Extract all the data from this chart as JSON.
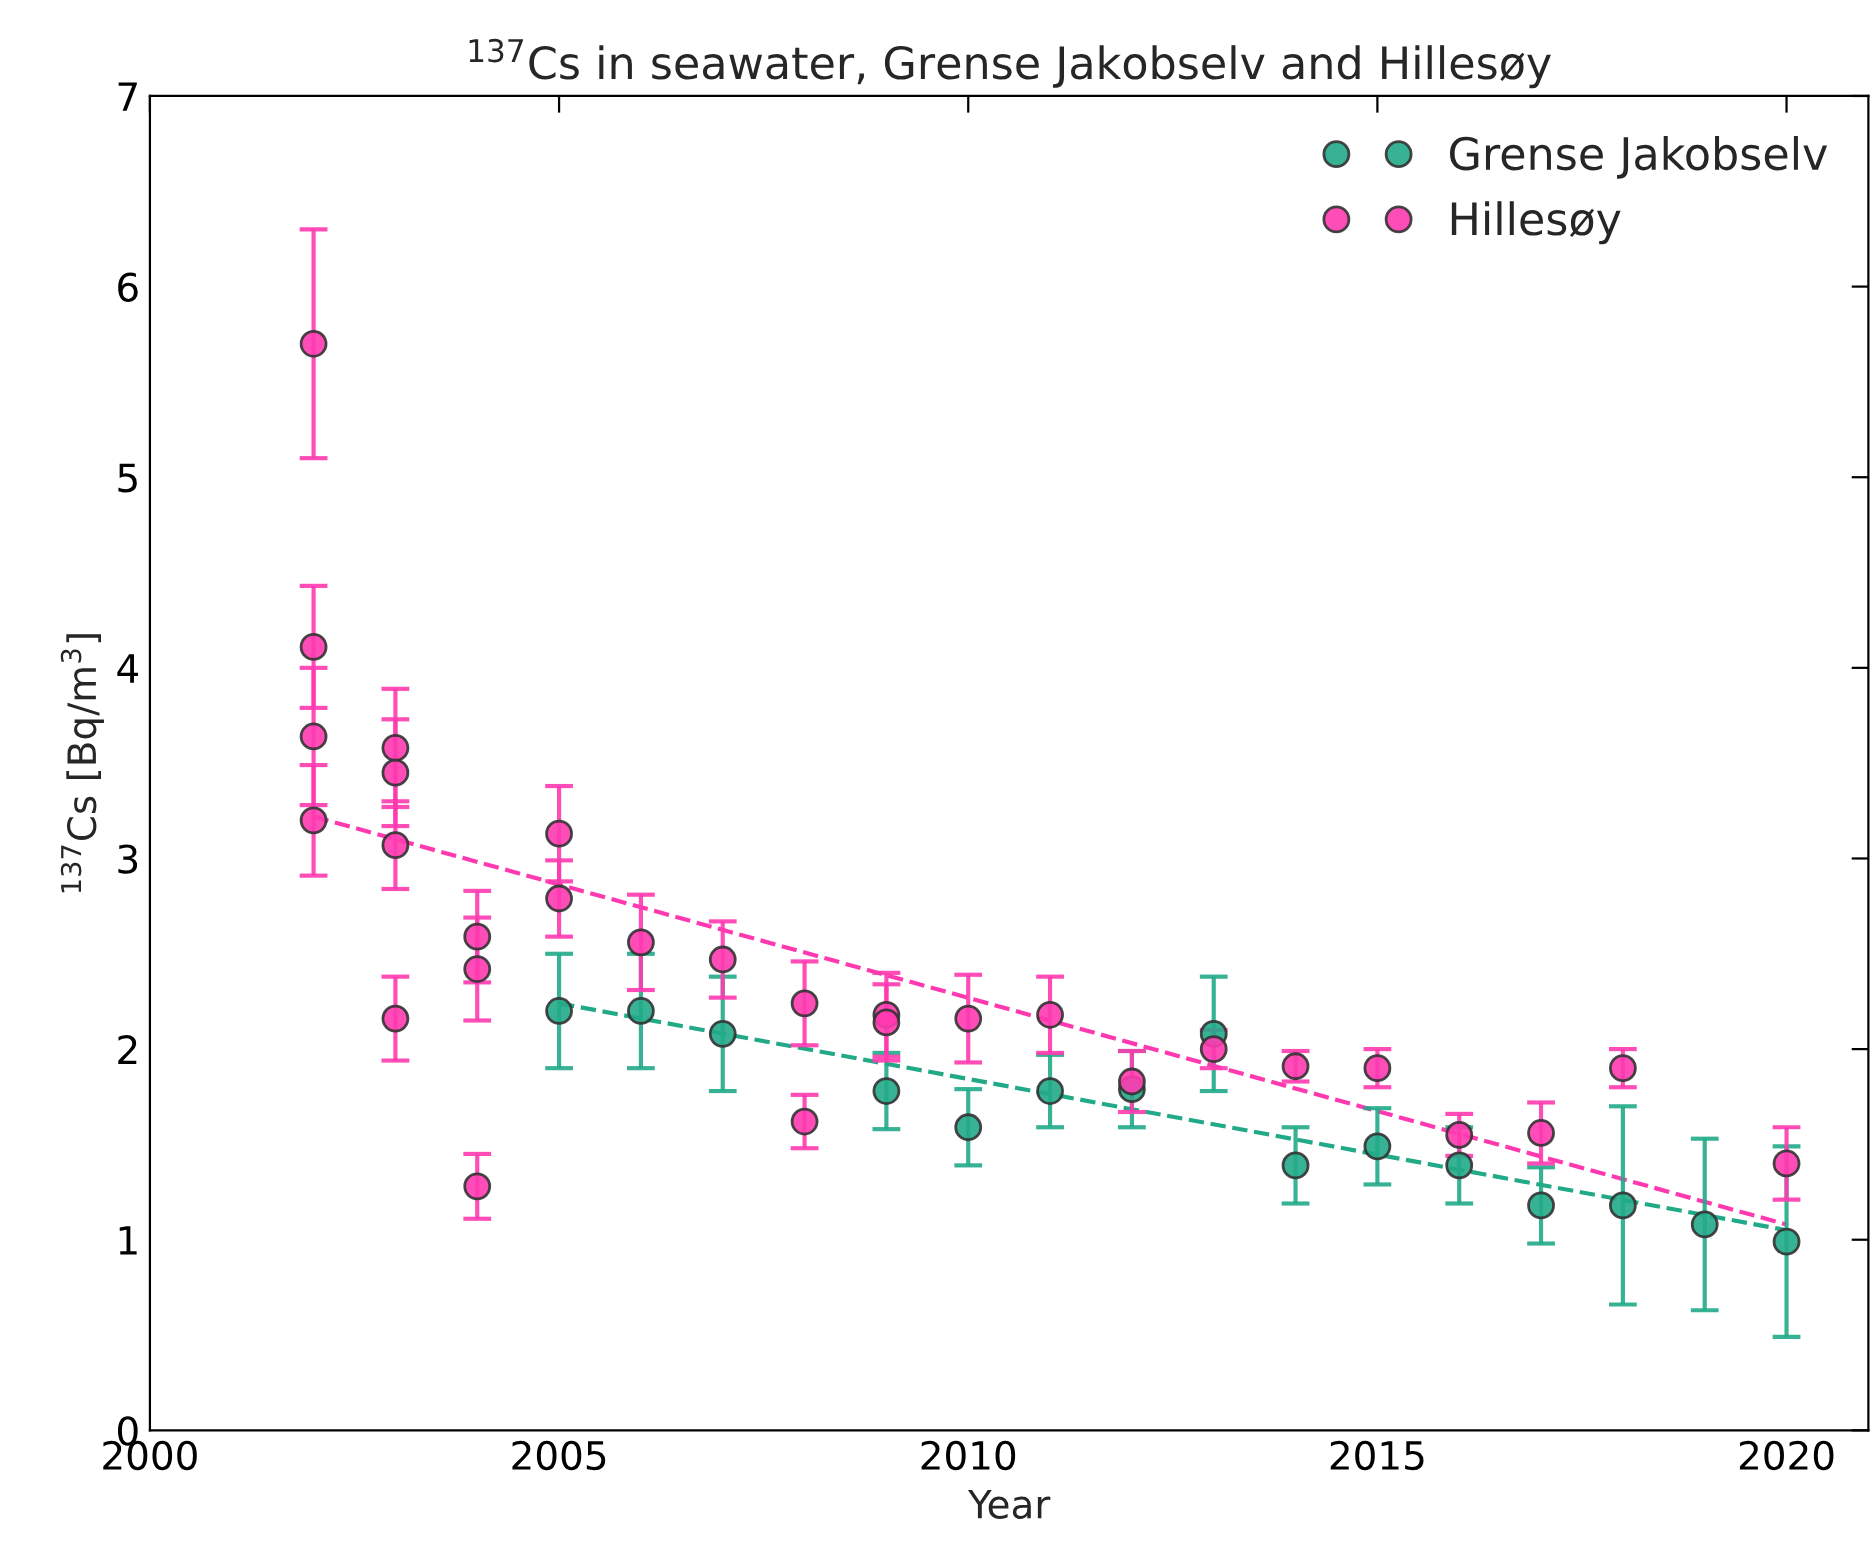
{
  "chart_data": {
    "type": "scatter",
    "title": "$^{137}$Cs in seawater, Grense Jakobselv and Hillesøy",
    "xlabel": "Year",
    "ylabel": "$^{137}$Cs [Bq/m$^{3}$]",
    "xlim": [
      2000,
      2021
    ],
    "xticks": [
      2000,
      2005,
      2010,
      2015,
      2020
    ],
    "ylim": [
      0,
      7
    ],
    "yticks": [
      0,
      1,
      2,
      3,
      4,
      5,
      6,
      7
    ],
    "grid": false,
    "legend": "top right",
    "marker": "circle",
    "series": [
      {
        "name": "Grense Jakobselv",
        "color": "#22aa88",
        "x": [
          2005,
          2006,
          2007,
          2009,
          2010,
          2011,
          2012,
          2013,
          2014,
          2015,
          2016,
          2017,
          2018,
          2019,
          2020
        ],
        "values": [
          2.2,
          2.2,
          2.08,
          1.78,
          1.59,
          1.78,
          1.79,
          2.08,
          1.39,
          1.49,
          1.39,
          1.18,
          1.18,
          1.08,
          0.99
        ],
        "errors": [
          0.3,
          0.3,
          0.3,
          0.2,
          0.2,
          0.19,
          0.2,
          0.3,
          0.2,
          0.2,
          0.2,
          0.2,
          0.52,
          0.45,
          0.5
        ]
      },
      {
        "name": "Hillesøy",
        "color": "#ff3ab0",
        "x": [
          2002,
          2002,
          2002,
          2002,
          2003,
          2003,
          2003,
          2003,
          2004,
          2004,
          2004,
          2005,
          2005,
          2006,
          2007,
          2008,
          2008,
          2009,
          2009,
          2010,
          2011,
          2012,
          2013,
          2014,
          2015,
          2016,
          2017,
          2018,
          2020
        ],
        "values": [
          5.7,
          4.11,
          3.64,
          3.2,
          3.58,
          3.45,
          3.07,
          2.16,
          2.59,
          2.42,
          1.28,
          3.13,
          2.79,
          2.56,
          2.47,
          2.24,
          1.62,
          2.18,
          2.14,
          2.16,
          2.18,
          1.83,
          2.0,
          1.91,
          1.9,
          1.55,
          1.56,
          1.9,
          1.4
        ],
        "errors": [
          0.6,
          0.32,
          0.36,
          0.29,
          0.31,
          0.28,
          0.23,
          0.22,
          0.24,
          0.27,
          0.17,
          0.25,
          0.2,
          0.25,
          0.2,
          0.22,
          0.14,
          0.22,
          0.2,
          0.23,
          0.2,
          0.16,
          0.1,
          0.08,
          0.1,
          0.11,
          0.16,
          0.1,
          0.19
        ]
      },
      {
        "type": "line",
        "color": "#22aa88",
        "line_style": "dashed",
        "marker": "none",
        "x": [
          2005,
          2020
        ],
        "values": [
          2.24,
          1.05
        ]
      },
      {
        "type": "line",
        "color": "#ff3ab0",
        "line_style": "dashed",
        "marker": "none",
        "x": [
          2002,
          2020
        ],
        "values": [
          3.22,
          1.08
        ]
      }
    ]
  }
}
